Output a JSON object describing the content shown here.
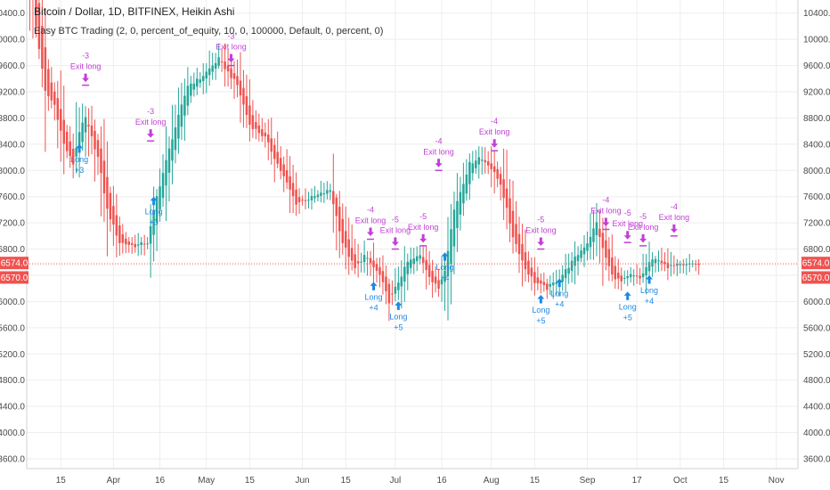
{
  "header": {
    "title": "Bitcoin / Dollar, 1D, BITFINEX, Heikin Ashi",
    "indicator": "Easy BTC Trading (2, 0, percent_of_equity, 10, 0, 100000, Default, 0, percent, 0)"
  },
  "colors": {
    "up": "#26a69a",
    "down": "#ef5350",
    "exit": "#c13fd6",
    "long": "#1e88e5",
    "current_line": "#ef5350",
    "grid": "#eeeeee"
  },
  "chart_data": {
    "type": "candlestick",
    "style": "heikin-ashi",
    "x_range": [
      "2018-03-04",
      "2018-11-08"
    ],
    "ylim": [
      3450,
      10600
    ],
    "grid": true,
    "y_ticks": [
      3600,
      4000,
      4400,
      4800,
      5200,
      5600,
      6000,
      6400,
      6800,
      7200,
      7600,
      8000,
      8400,
      8800,
      9200,
      9600,
      10000,
      10400
    ],
    "y_tick_labels": [
      "3600.0",
      "4000.0",
      "4400.0",
      "4800.0",
      "5200.0",
      "5600.0",
      "6000.0",
      "6400.0",
      "6800.0",
      "7200.0",
      "7600.0",
      "8000.0",
      "8400.0",
      "8800.0",
      "9200.0",
      "9600.0",
      "10000.0",
      "10400.0"
    ],
    "x_ticks": [
      {
        "date": "2018-03-15",
        "label": "15"
      },
      {
        "date": "2018-04-01",
        "label": "Apr"
      },
      {
        "date": "2018-04-16",
        "label": "16"
      },
      {
        "date": "2018-05-01",
        "label": "May"
      },
      {
        "date": "2018-05-15",
        "label": "15"
      },
      {
        "date": "2018-06-01",
        "label": "Jun"
      },
      {
        "date": "2018-06-15",
        "label": "15"
      },
      {
        "date": "2018-07-01",
        "label": "Jul"
      },
      {
        "date": "2018-07-16",
        "label": "16"
      },
      {
        "date": "2018-08-01",
        "label": "Aug"
      },
      {
        "date": "2018-08-15",
        "label": "15"
      },
      {
        "date": "2018-09-01",
        "label": "Sep"
      },
      {
        "date": "2018-09-17",
        "label": "17"
      },
      {
        "date": "2018-10-01",
        "label": "Oct"
      },
      {
        "date": "2018-10-15",
        "label": "15"
      },
      {
        "date": "2018-11-01",
        "label": "Nov"
      }
    ],
    "price_tags": [
      {
        "value": 6574.0,
        "label": "6574.0"
      },
      {
        "value": 6570.0,
        "label": "6570.0"
      }
    ],
    "current_price_line": 6574.0,
    "close_path": [
      {
        "date": "2018-03-04",
        "close": 11400
      },
      {
        "date": "2018-03-07",
        "close": 10200
      },
      {
        "date": "2018-03-10",
        "close": 9200
      },
      {
        "date": "2018-03-13",
        "close": 9000
      },
      {
        "date": "2018-03-16",
        "close": 8400
      },
      {
        "date": "2018-03-19",
        "close": 8100
      },
      {
        "date": "2018-03-21",
        "close": 8600
      },
      {
        "date": "2018-03-23",
        "close": 8800
      },
      {
        "date": "2018-03-27",
        "close": 8200
      },
      {
        "date": "2018-03-30",
        "close": 7400
      },
      {
        "date": "2018-04-03",
        "close": 6900
      },
      {
        "date": "2018-04-08",
        "close": 6850
      },
      {
        "date": "2018-04-12",
        "close": 6900
      },
      {
        "date": "2018-04-15",
        "close": 7600
      },
      {
        "date": "2018-04-20",
        "close": 8500
      },
      {
        "date": "2018-04-25",
        "close": 9300
      },
      {
        "date": "2018-04-29",
        "close": 9400
      },
      {
        "date": "2018-05-05",
        "close": 9700
      },
      {
        "date": "2018-05-08",
        "close": 9500
      },
      {
        "date": "2018-05-11",
        "close": 9300
      },
      {
        "date": "2018-05-15",
        "close": 8700
      },
      {
        "date": "2018-05-20",
        "close": 8500
      },
      {
        "date": "2018-05-25",
        "close": 8000
      },
      {
        "date": "2018-05-30",
        "close": 7500
      },
      {
        "date": "2018-06-05",
        "close": 7600
      },
      {
        "date": "2018-06-10",
        "close": 7700
      },
      {
        "date": "2018-06-14",
        "close": 6900
      },
      {
        "date": "2018-06-18",
        "close": 6500
      },
      {
        "date": "2018-06-21",
        "close": 6700
      },
      {
        "date": "2018-06-26",
        "close": 6400
      },
      {
        "date": "2018-06-29",
        "close": 6000
      },
      {
        "date": "2018-07-02",
        "close": 6300
      },
      {
        "date": "2018-07-05",
        "close": 6600
      },
      {
        "date": "2018-07-09",
        "close": 6700
      },
      {
        "date": "2018-07-13",
        "close": 6300
      },
      {
        "date": "2018-07-15",
        "close": 6200
      },
      {
        "date": "2018-07-17",
        "close": 6500
      },
      {
        "date": "2018-07-20",
        "close": 7400
      },
      {
        "date": "2018-07-25",
        "close": 8100
      },
      {
        "date": "2018-07-28",
        "close": 8200
      },
      {
        "date": "2018-07-31",
        "close": 8100
      },
      {
        "date": "2018-08-04",
        "close": 7800
      },
      {
        "date": "2018-08-08",
        "close": 7000
      },
      {
        "date": "2018-08-12",
        "close": 6500
      },
      {
        "date": "2018-08-15",
        "close": 6300
      },
      {
        "date": "2018-08-19",
        "close": 6200
      },
      {
        "date": "2018-08-23",
        "close": 6350
      },
      {
        "date": "2018-08-27",
        "close": 6600
      },
      {
        "date": "2018-09-01",
        "close": 6900
      },
      {
        "date": "2018-09-04",
        "close": 7200
      },
      {
        "date": "2018-09-06",
        "close": 6800
      },
      {
        "date": "2018-09-09",
        "close": 6400
      },
      {
        "date": "2018-09-12",
        "close": 6300
      },
      {
        "date": "2018-09-15",
        "close": 6400
      },
      {
        "date": "2018-09-18",
        "close": 6350
      },
      {
        "date": "2018-09-21",
        "close": 6600
      },
      {
        "date": "2018-09-24",
        "close": 6650
      },
      {
        "date": "2018-09-27",
        "close": 6500
      },
      {
        "date": "2018-09-30",
        "close": 6600
      },
      {
        "date": "2018-10-03",
        "close": 6580
      },
      {
        "date": "2018-10-07",
        "close": 6574
      }
    ],
    "annotations": [
      {
        "kind": "exit",
        "date": "2018-03-23",
        "price": 9300,
        "text": "Exit long",
        "qty": "-3"
      },
      {
        "kind": "long",
        "date": "2018-03-21",
        "price": 8400,
        "text": "Long",
        "qty": "+3"
      },
      {
        "kind": "exit",
        "date": "2018-04-13",
        "price": 8450,
        "text": "Exit long",
        "qty": "-3"
      },
      {
        "kind": "long",
        "date": "2018-04-14",
        "price": 7600,
        "text": "Long",
        "qty": "+3"
      },
      {
        "kind": "exit",
        "date": "2018-05-09",
        "price": 9600,
        "text": "Exit long",
        "qty": "-3"
      },
      {
        "kind": "exit",
        "date": "2018-06-23",
        "price": 6950,
        "text": "Exit long",
        "qty": "-4"
      },
      {
        "kind": "long",
        "date": "2018-06-24",
        "price": 6300,
        "text": "Long",
        "qty": "+4"
      },
      {
        "kind": "exit",
        "date": "2018-07-01",
        "price": 6800,
        "text": "Exit long",
        "qty": "-5"
      },
      {
        "kind": "long",
        "date": "2018-07-02",
        "price": 6000,
        "text": "Long",
        "qty": "+5"
      },
      {
        "kind": "exit",
        "date": "2018-07-10",
        "price": 6850,
        "text": "Exit long",
        "qty": "-5"
      },
      {
        "kind": "long",
        "date": "2018-07-17",
        "price": 6750,
        "text": "Long",
        "qty": "+4"
      },
      {
        "kind": "exit",
        "date": "2018-07-15",
        "price": 8000,
        "text": "Exit long",
        "qty": "-4"
      },
      {
        "kind": "exit",
        "date": "2018-08-02",
        "price": 8300,
        "text": "Exit long",
        "qty": "-4"
      },
      {
        "kind": "exit",
        "date": "2018-08-17",
        "price": 6800,
        "text": "Exit long",
        "qty": "-5"
      },
      {
        "kind": "long",
        "date": "2018-08-17",
        "price": 6100,
        "text": "Long",
        "qty": "+5"
      },
      {
        "kind": "long",
        "date": "2018-08-23",
        "price": 6350,
        "text": "Long",
        "qty": "+4"
      },
      {
        "kind": "exit",
        "date": "2018-09-07",
        "price": 7100,
        "text": "Exit long",
        "qty": "-4"
      },
      {
        "kind": "exit",
        "date": "2018-09-14",
        "price": 6900,
        "text": "Exit long",
        "qty": "-5"
      },
      {
        "kind": "long",
        "date": "2018-09-14",
        "price": 6150,
        "text": "Long",
        "qty": "+5"
      },
      {
        "kind": "exit",
        "date": "2018-09-19",
        "price": 6850,
        "text": "Exit long",
        "qty": "-5"
      },
      {
        "kind": "long",
        "date": "2018-09-21",
        "price": 6400,
        "text": "Long",
        "qty": "+4"
      },
      {
        "kind": "exit",
        "date": "2018-09-29",
        "price": 7000,
        "text": "Exit long",
        "qty": "-4"
      }
    ]
  }
}
